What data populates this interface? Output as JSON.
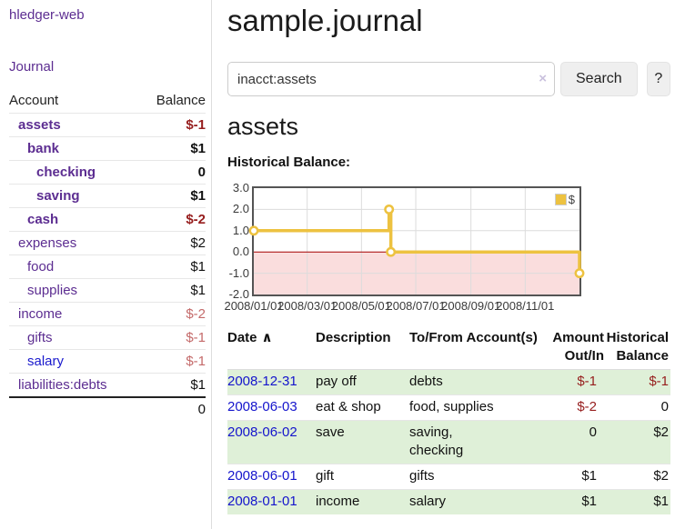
{
  "app": {
    "brand": "hledger-web",
    "nav_journal": "Journal"
  },
  "header": {
    "title": "sample.journal"
  },
  "search": {
    "value": "inacct:assets",
    "clear_icon": "×",
    "button_label": "Search",
    "help_label": "?"
  },
  "sidebar": {
    "columns": {
      "account": "Account",
      "balance": "Balance"
    },
    "accounts": [
      {
        "name": "assets",
        "balance": "$-1"
      },
      {
        "name": "bank",
        "balance": "$1"
      },
      {
        "name": "checking",
        "balance": "0"
      },
      {
        "name": "saving",
        "balance": "$1"
      },
      {
        "name": "cash",
        "balance": "$-2"
      },
      {
        "name": "expenses",
        "balance": "$2"
      },
      {
        "name": "food",
        "balance": "$1"
      },
      {
        "name": "supplies",
        "balance": "$1"
      },
      {
        "name": "income",
        "balance": "$-2"
      },
      {
        "name": "gifts",
        "balance": "$-1"
      },
      {
        "name": "salary",
        "balance": "$-1"
      },
      {
        "name": "liabilities:debts",
        "balance": "$1"
      }
    ],
    "total": "0"
  },
  "account_page": {
    "heading": "assets",
    "chart_label": "Historical Balance:"
  },
  "chart_data": {
    "type": "line",
    "step": true,
    "title": "Historical Balance",
    "legend": "$",
    "legend_position": "top-right",
    "grid": true,
    "ylim": [
      -2,
      3
    ],
    "yticks": [
      3,
      2,
      1,
      0,
      -1,
      -2
    ],
    "ytick_labels": [
      "3.0",
      "2.0",
      "1.0",
      "0.0",
      "-1.0",
      "-2.0"
    ],
    "xticks": [
      {
        "label": "2008/01/01",
        "x": 0
      },
      {
        "label": "2008/03/01",
        "x": 0.1639
      },
      {
        "label": "2008/05/01",
        "x": 0.3306
      },
      {
        "label": "2008/07/01",
        "x": 0.4973
      },
      {
        "label": "2008/09/01",
        "x": 0.6667
      },
      {
        "label": "2008/11/01",
        "x": 0.8333
      }
    ],
    "series": [
      {
        "name": "$",
        "color": "#edc240",
        "points": [
          {
            "date": "2008-01-01",
            "x": 0,
            "y": 1
          },
          {
            "date": "2008-06-01",
            "x": 0.4153,
            "y": 2
          },
          {
            "date": "2008-06-03",
            "x": 0.4208,
            "y": 0
          },
          {
            "date": "2008-12-31",
            "x": 1,
            "y": -1
          }
        ]
      }
    ],
    "negative_fill": "#fadddd",
    "zero_line_color": "#a40000",
    "grid_color": "#dcdcdc"
  },
  "register_table": {
    "columns": [
      "Date",
      "Description",
      "To/From Account(s)",
      "Amount Out/In",
      "Historical Balance"
    ],
    "sort_icon": "∧",
    "rows": [
      {
        "date": "2008-12-31",
        "description": "pay off",
        "to_from": "debts",
        "amount": "$-1",
        "balance": "$-1"
      },
      {
        "date": "2008-06-03",
        "description": "eat & shop",
        "to_from": "food, supplies",
        "amount": "$-2",
        "balance": "0"
      },
      {
        "date": "2008-06-02",
        "description": "save",
        "to_from": "saving,\nchecking",
        "amount": "0",
        "balance": "$2"
      },
      {
        "date": "2008-06-01",
        "description": "gift",
        "to_from": "gifts",
        "amount": "$1",
        "balance": "$2"
      },
      {
        "date": "2008-01-01",
        "description": "income",
        "to_from": "salary",
        "amount": "$1",
        "balance": "$1"
      }
    ]
  },
  "colors": {
    "link_purple": "#5c2d91",
    "link_blue": "#1a1acd",
    "negative_strong": "#961d1d",
    "negative_soft": "#c46a6a",
    "row_stripe_green": "#dff0d8",
    "chart_line_gold": "#edc240",
    "chart_negative_fill": "#fadddd",
    "chart_zero_line": "#a40000"
  }
}
